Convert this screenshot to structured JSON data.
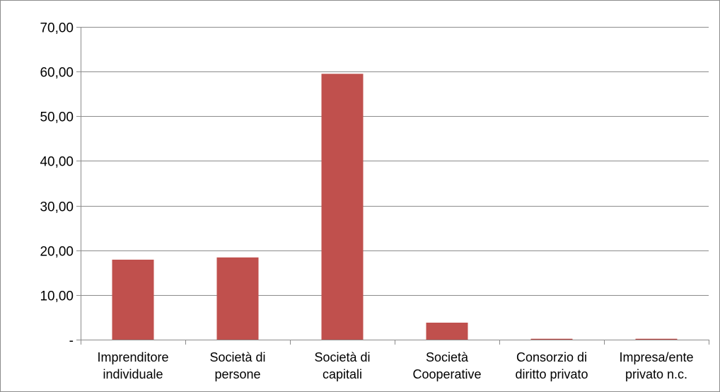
{
  "chart_data": {
    "type": "bar",
    "title": "",
    "xlabel": "",
    "ylabel": "",
    "categories": [
      [
        "Imprenditore",
        "individuale"
      ],
      [
        "Società di",
        "persone"
      ],
      [
        "Società di",
        "capitali"
      ],
      [
        "Società",
        "Cooperative"
      ],
      [
        "Consorzio di",
        "diritto privato"
      ],
      [
        "Impresa/ente",
        "privato n.c."
      ]
    ],
    "values": [
      17.9,
      18.4,
      59.5,
      3.8,
      0.2,
      0.2
    ],
    "ylim": [
      0,
      70
    ],
    "y_ticks": [
      {
        "value": 0,
        "label": "-"
      },
      {
        "value": 10,
        "label": "10,00"
      },
      {
        "value": 20,
        "label": "20,00"
      },
      {
        "value": 30,
        "label": "30,00"
      },
      {
        "value": 40,
        "label": "40,00"
      },
      {
        "value": 50,
        "label": "50,00"
      },
      {
        "value": 60,
        "label": "60,00"
      },
      {
        "value": 70,
        "label": "70,00"
      }
    ],
    "grid": true,
    "legend": "none",
    "colors": {
      "bar": "#c0504d",
      "gridline": "#8c8c8c",
      "axis": "#8c8c8c"
    }
  }
}
